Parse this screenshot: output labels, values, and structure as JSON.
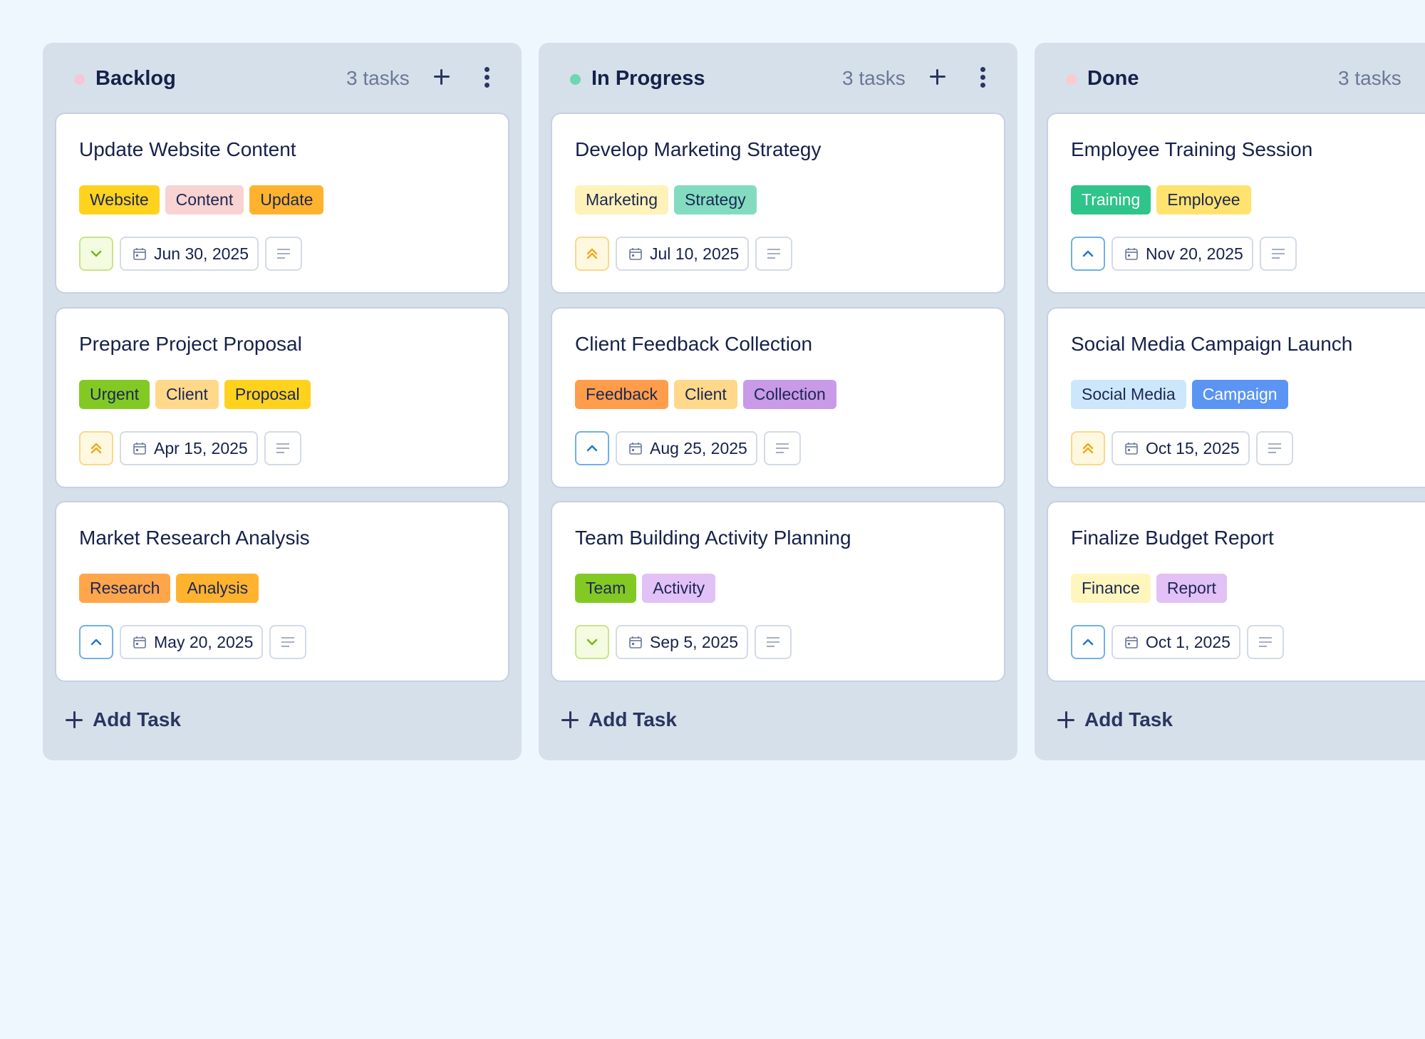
{
  "columns": [
    {
      "title": "Backlog",
      "count": "3 tasks",
      "dot_color": "#f5c6d9",
      "add_task_label": "Add Task",
      "cards": [
        {
          "title": "Update Website Content",
          "tags": [
            {
              "label": "Website",
              "bg": "#ffd21e"
            },
            {
              "label": "Content",
              "bg": "#f9d2d2"
            },
            {
              "label": "Update",
              "bg": "#ffb22e"
            }
          ],
          "priority": {
            "icon": "chevron-down-icon",
            "level": "low"
          },
          "date": "Jun 30, 2025"
        },
        {
          "title": "Prepare Project Proposal",
          "tags": [
            {
              "label": "Urgent",
              "bg": "#83c923"
            },
            {
              "label": "Client",
              "bg": "#ffd88a"
            },
            {
              "label": "Proposal",
              "bg": "#ffd21e"
            }
          ],
          "priority": {
            "icon": "double-chevron-up-icon",
            "level": "high"
          },
          "date": "Apr 15, 2025"
        },
        {
          "title": "Market Research Analysis",
          "tags": [
            {
              "label": "Research",
              "bg": "#ffa54a"
            },
            {
              "label": "Analysis",
              "bg": "#ffb22e"
            }
          ],
          "priority": {
            "icon": "chevron-up-icon",
            "level": "medium"
          },
          "date": "May 20, 2025"
        }
      ]
    },
    {
      "title": "In Progress",
      "count": "3 tasks",
      "dot_color": "#6fd6b2",
      "add_task_label": "Add Task",
      "cards": [
        {
          "title": "Develop Marketing Strategy",
          "tags": [
            {
              "label": "Marketing",
              "bg": "#fff2b8"
            },
            {
              "label": "Strategy",
              "bg": "#83dcc0"
            }
          ],
          "priority": {
            "icon": "double-chevron-up-icon",
            "level": "high"
          },
          "date": "Jul 10, 2025"
        },
        {
          "title": "Client Feedback Collection",
          "tags": [
            {
              "label": "Feedback",
              "bg": "#ff9d4a"
            },
            {
              "label": "Client",
              "bg": "#ffd88a"
            },
            {
              "label": "Collection",
              "bg": "#c89ae8"
            }
          ],
          "priority": {
            "icon": "chevron-up-icon",
            "level": "medium"
          },
          "date": "Aug 25, 2025"
        },
        {
          "title": "Team Building Activity Planning",
          "tags": [
            {
              "label": "Team",
              "bg": "#83c923"
            },
            {
              "label": "Activity",
              "bg": "#e2c1f7"
            }
          ],
          "priority": {
            "icon": "chevron-down-icon",
            "level": "low"
          },
          "date": "Sep 5, 2025"
        }
      ]
    },
    {
      "title": "Done",
      "count": "3 tasks",
      "dot_color": "#f9cbd1",
      "add_task_label": "Add Task",
      "cards": [
        {
          "title": "Employee Training Session",
          "tags": [
            {
              "label": "Training",
              "bg": "#2fc48a",
              "fg": "#ffffff"
            },
            {
              "label": "Employee",
              "bg": "#ffe36e"
            }
          ],
          "priority": {
            "icon": "chevron-up-icon",
            "level": "medium"
          },
          "date": "Nov 20, 2025"
        },
        {
          "title": "Social Media Campaign Launch",
          "tags": [
            {
              "label": "Social Media",
              "bg": "#cce7fb"
            },
            {
              "label": "Campaign",
              "bg": "#5b95f4",
              "fg": "#ffffff"
            }
          ],
          "priority": {
            "icon": "double-chevron-up-icon",
            "level": "high"
          },
          "date": "Oct 15, 2025"
        },
        {
          "title": "Finalize Budget Report",
          "tags": [
            {
              "label": "Finance",
              "bg": "#fff6bd"
            },
            {
              "label": "Report",
              "bg": "#e2c1f7"
            }
          ],
          "priority": {
            "icon": "chevron-up-icon",
            "level": "medium"
          },
          "date": "Oct 1, 2025"
        }
      ]
    }
  ],
  "colors": {
    "background": "#eff7fe",
    "column_bg": "#d6e0ea",
    "priority_low": "#7fb217",
    "priority_medium": "#1f76c9",
    "priority_high": "#f0a81c"
  }
}
